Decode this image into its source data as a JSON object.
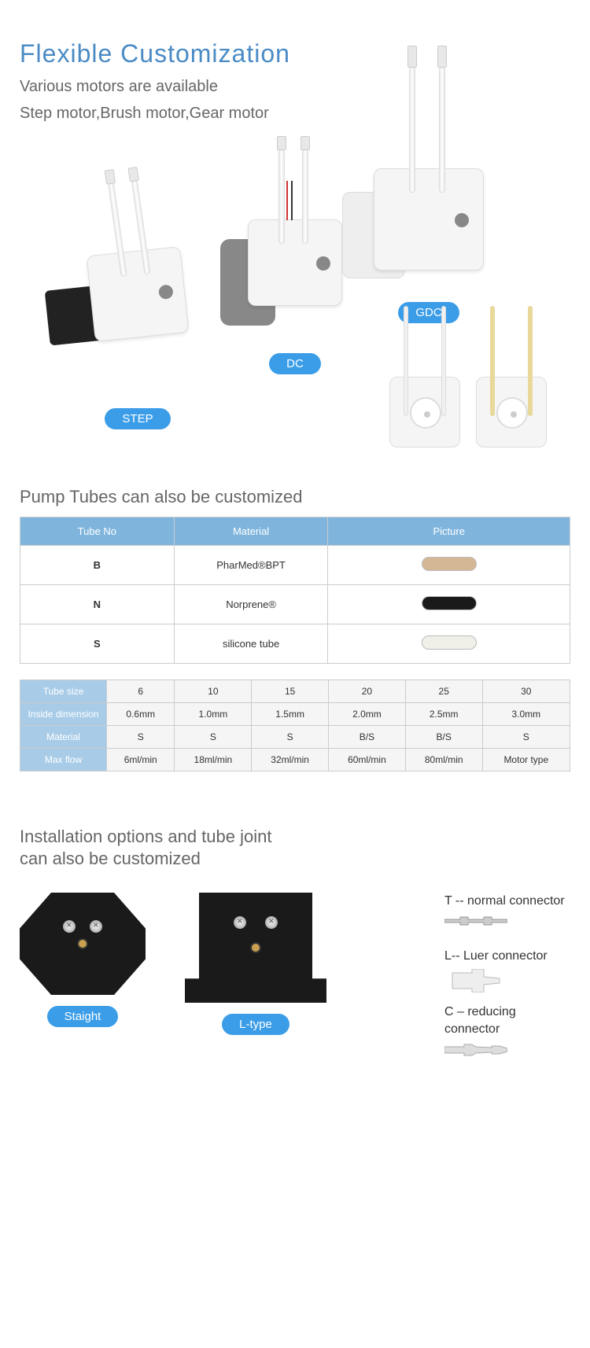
{
  "colors": {
    "heading": "#4a8bc5",
    "subtext": "#666666",
    "pill_bg": "#3b9de8",
    "table_header_bg": "#7fb5dd",
    "table_header_text": "#ffffff",
    "table_rowheader_bg": "#a8cce8",
    "table_border": "#cccccc",
    "motor_step": "#222222",
    "motor_dc": "#888888",
    "motor_gdc": "#eeeeee",
    "tube_white": "#f0f0f0",
    "tube_yellow": "#e8d89a",
    "sample_bpt": "#d4b896",
    "sample_norprene": "#1a1a1a",
    "sample_silicone": "#f0f0e8"
  },
  "title": "Flexible Customization",
  "subtitle_line1": "Various motors are available",
  "subtitle_line2": "Step motor,Brush motor,Gear motor",
  "motors": {
    "step": "STEP",
    "dc": "DC",
    "gdc": "GDC"
  },
  "tubes_title": "Pump Tubes can also be customized",
  "tube_table": {
    "headers": [
      "Tube No",
      "Material",
      "Picture"
    ],
    "rows": [
      {
        "no": "B",
        "material": "PharMed®BPT",
        "sample_key": "sample_bpt"
      },
      {
        "no": "N",
        "material": "Norprene®",
        "sample_key": "sample_norprene"
      },
      {
        "no": "S",
        "material": "silicone tube",
        "sample_key": "sample_silicone"
      }
    ]
  },
  "spec_table": {
    "row_headers": [
      "Tube size",
      "Inside dimension",
      "Material",
      "Max flow"
    ],
    "cols": [
      {
        "size": "6",
        "id": "0.6mm",
        "mat": "S",
        "flow": "6ml/min"
      },
      {
        "size": "10",
        "id": "1.0mm",
        "mat": "S",
        "flow": "18ml/min"
      },
      {
        "size": "15",
        "id": "1.5mm",
        "mat": "S",
        "flow": "32ml/min"
      },
      {
        "size": "20",
        "id": "2.0mm",
        "mat": "B/S",
        "flow": "60ml/min"
      },
      {
        "size": "25",
        "id": "2.5mm",
        "mat": "B/S",
        "flow": "80ml/min"
      },
      {
        "size": "30",
        "id": "3.0mm",
        "mat": "S",
        "flow": "Motor type"
      }
    ]
  },
  "install_title_l1": "Installation options and tube joint",
  "install_title_l2": "can also be customized",
  "mounts": {
    "staight": "Staight",
    "ltype": "L-type"
  },
  "connectors": [
    {
      "label": "T -- normal connector",
      "type": "normal"
    },
    {
      "label": "L-- Luer connector",
      "type": "luer"
    },
    {
      "label": "C – reducing connector",
      "type": "reducing"
    }
  ]
}
